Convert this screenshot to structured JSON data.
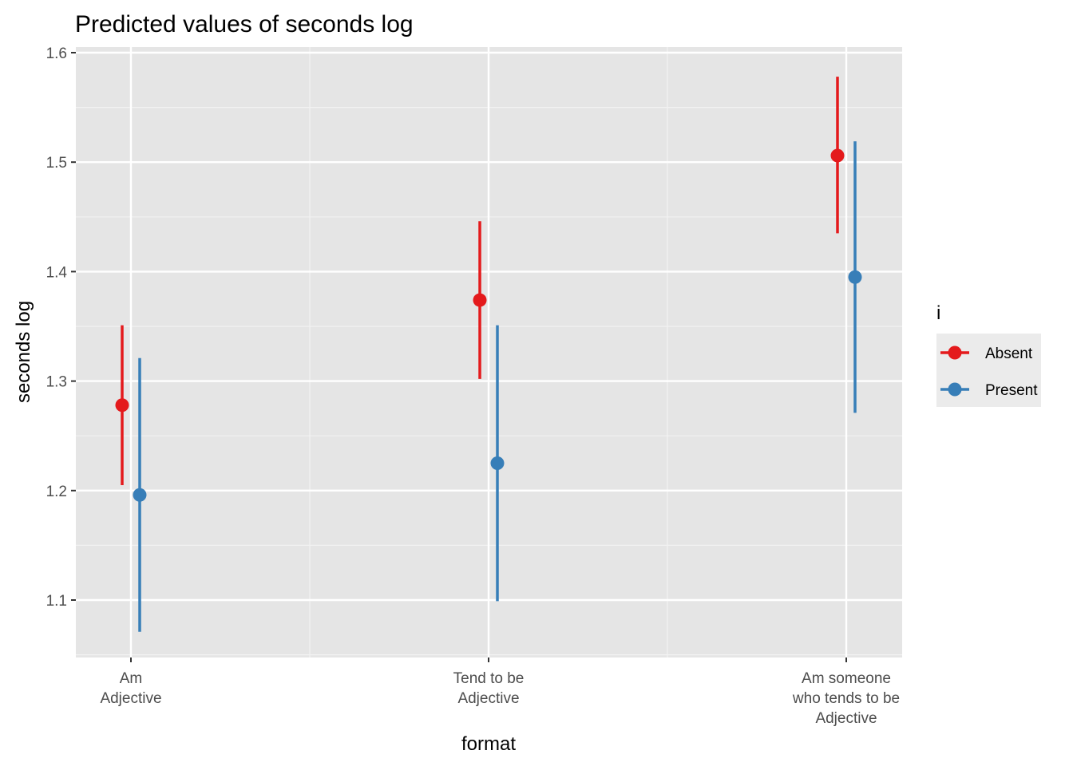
{
  "chart_data": {
    "type": "scatter",
    "title": "Predicted values of seconds log",
    "xlabel": "format",
    "ylabel": "seconds log",
    "categories": [
      "Am\nAdjective",
      "Tend to be\nAdjective",
      "Am someone\nwho tends to be\nAdjective"
    ],
    "ylim": [
      1.05,
      1.6
    ],
    "yticks": [
      1.1,
      1.2,
      1.3,
      1.4,
      1.5,
      1.6
    ],
    "ytick_labels": [
      "1.1",
      "1.2",
      "1.3",
      "1.4",
      "1.5",
      "1.6"
    ],
    "grid": true,
    "legend": {
      "title": "i",
      "position": "right"
    },
    "series": [
      {
        "name": "Absent",
        "color": "#e41a1c",
        "values": [
          1.278,
          1.374,
          1.506
        ],
        "lower": [
          1.205,
          1.302,
          1.435
        ],
        "upper": [
          1.351,
          1.446,
          1.578
        ]
      },
      {
        "name": "Present",
        "color": "#377eb8",
        "values": [
          1.196,
          1.225,
          1.395
        ],
        "lower": [
          1.071,
          1.099,
          1.271
        ],
        "upper": [
          1.321,
          1.351,
          1.519
        ]
      }
    ]
  }
}
